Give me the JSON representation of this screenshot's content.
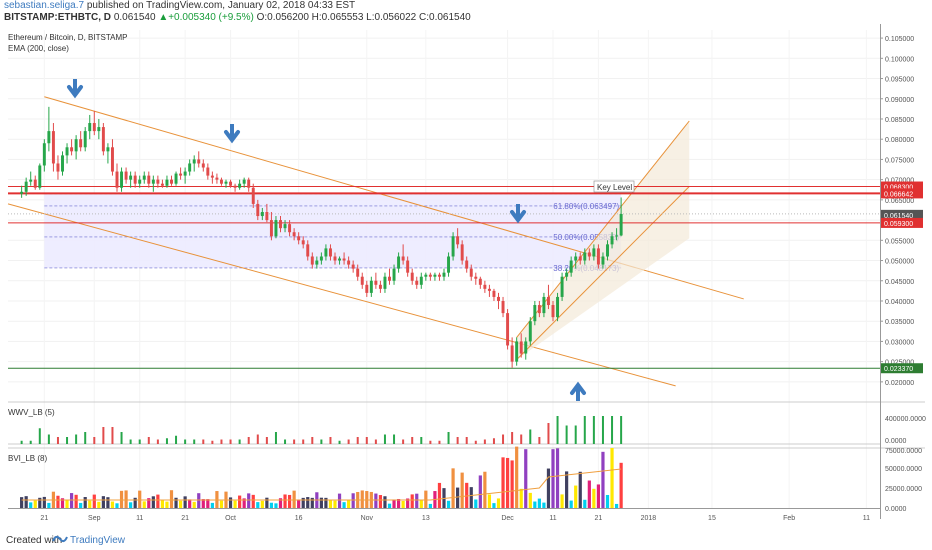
{
  "header": {
    "author": "sebastian.seliga.7",
    "published_text": "published on TradingView.com, January 02, 2018 04:33 EST",
    "symbol": "BITSTAMP:ETHBTC, D",
    "close": "0.061540",
    "change": "+0.005340 (+9.5%)",
    "open": "O:0.056200",
    "high": "H:0.065553",
    "low": "L:0.056022",
    "close_label": "C:0.061540"
  },
  "legend": {
    "title": "Ethereum / Bitcoin, D, BITSTAMP",
    "ema": "EMA (200, close)"
  },
  "annotations": {
    "key_level": "Key Level",
    "fib": [
      "61.80%(0.063497)",
      "50.00%(0.055835)",
      "38.20%(0.048173)"
    ],
    "level_tags": [
      "0.068300",
      "0.066642",
      "0.061540",
      "0.059300",
      "0.023370"
    ]
  },
  "panes": {
    "wvw": "WWV_LB (5)",
    "bvi": "BVI_LB (8)"
  },
  "footer": {
    "created_with": "Created with",
    "brand": "TradingView"
  },
  "colors": {
    "up": "#26a64a",
    "down": "#e14b4b",
    "channel": "#e8923a",
    "red_line": "#e03030",
    "green_line": "#2e7d32",
    "fib": "#6a6ad0",
    "arrow": "#3e7bbf",
    "fib_band": "#ecebff",
    "up_channel_fill": "#f3e9d8"
  },
  "chart_data": {
    "type": "candlestick",
    "title": "Ethereum / Bitcoin, D, BITSTAMP",
    "y_price_ticks": [
      "0.105000",
      "0.100000",
      "0.095000",
      "0.090000",
      "0.085000",
      "0.080000",
      "0.075000",
      "0.070000",
      "0.065000",
      "0.060000",
      "0.055000",
      "0.050000",
      "0.045000",
      "0.040000",
      "0.035000",
      "0.030000",
      "0.025000",
      "0.020000"
    ],
    "y_price_range": [
      0.017,
      0.107
    ],
    "x_ticks": [
      "21",
      "Sep",
      "11",
      "21",
      "Oct",
      "16",
      "Nov",
      "13",
      "Dec",
      "11",
      "21",
      "2018",
      "15",
      "Feb",
      "11"
    ],
    "x_tick_days": [
      0,
      11,
      21,
      31,
      41,
      56,
      71,
      84,
      102,
      112,
      122,
      133,
      147,
      164,
      181
    ],
    "start_date": "2017-08-21",
    "x_range_days": [
      -8,
      184
    ],
    "candles": [
      [
        -5,
        0.0665,
        0.0685,
        0.0655,
        0.067
      ],
      [
        -4,
        0.067,
        0.0705,
        0.066,
        0.0695
      ],
      [
        -3,
        0.0695,
        0.072,
        0.0685,
        0.07
      ],
      [
        -2,
        0.07,
        0.071,
        0.0675,
        0.068
      ],
      [
        -1,
        0.068,
        0.074,
        0.0675,
        0.0735
      ],
      [
        0,
        0.0735,
        0.08,
        0.072,
        0.079
      ],
      [
        1,
        0.079,
        0.088,
        0.077,
        0.082
      ],
      [
        2,
        0.082,
        0.084,
        0.072,
        0.074
      ],
      [
        3,
        0.074,
        0.076,
        0.07,
        0.072
      ],
      [
        4,
        0.072,
        0.077,
        0.071,
        0.076
      ],
      [
        5,
        0.076,
        0.079,
        0.074,
        0.078
      ],
      [
        6,
        0.078,
        0.08,
        0.076,
        0.077
      ],
      [
        7,
        0.077,
        0.081,
        0.075,
        0.08
      ],
      [
        8,
        0.08,
        0.082,
        0.077,
        0.078
      ],
      [
        9,
        0.078,
        0.083,
        0.077,
        0.082
      ],
      [
        10,
        0.082,
        0.086,
        0.08,
        0.084
      ],
      [
        11,
        0.084,
        0.087,
        0.081,
        0.082
      ],
      [
        12,
        0.082,
        0.085,
        0.08,
        0.083
      ],
      [
        13,
        0.083,
        0.084,
        0.076,
        0.077
      ],
      [
        14,
        0.077,
        0.079,
        0.074,
        0.078
      ],
      [
        15,
        0.078,
        0.08,
        0.071,
        0.072
      ],
      [
        16,
        0.072,
        0.074,
        0.067,
        0.068
      ],
      [
        17,
        0.068,
        0.073,
        0.067,
        0.072
      ],
      [
        18,
        0.072,
        0.073,
        0.069,
        0.07
      ],
      [
        19,
        0.07,
        0.072,
        0.068,
        0.071
      ],
      [
        20,
        0.071,
        0.072,
        0.068,
        0.069
      ],
      [
        21,
        0.069,
        0.071,
        0.068,
        0.07
      ],
      [
        22,
        0.07,
        0.072,
        0.069,
        0.071
      ],
      [
        23,
        0.071,
        0.072,
        0.068,
        0.069
      ],
      [
        24,
        0.069,
        0.071,
        0.067,
        0.07
      ],
      [
        25,
        0.07,
        0.071,
        0.068,
        0.069
      ],
      [
        26,
        0.069,
        0.07,
        0.068,
        0.0685
      ],
      [
        27,
        0.0685,
        0.071,
        0.068,
        0.07
      ],
      [
        28,
        0.07,
        0.071,
        0.0685,
        0.069
      ],
      [
        29,
        0.069,
        0.072,
        0.0685,
        0.0715
      ],
      [
        30,
        0.0715,
        0.073,
        0.07,
        0.071
      ],
      [
        31,
        0.071,
        0.073,
        0.069,
        0.072
      ],
      [
        32,
        0.072,
        0.075,
        0.071,
        0.074
      ],
      [
        33,
        0.074,
        0.076,
        0.072,
        0.075
      ],
      [
        34,
        0.075,
        0.077,
        0.073,
        0.074
      ],
      [
        35,
        0.074,
        0.075,
        0.072,
        0.073
      ],
      [
        36,
        0.073,
        0.074,
        0.07,
        0.071
      ],
      [
        37,
        0.071,
        0.072,
        0.069,
        0.0705
      ],
      [
        38,
        0.0705,
        0.0715,
        0.069,
        0.07
      ],
      [
        39,
        0.07,
        0.0705,
        0.0685,
        0.069
      ],
      [
        40,
        0.069,
        0.07,
        0.068,
        0.0695
      ],
      [
        41,
        0.0695,
        0.07,
        0.068,
        0.0685
      ],
      [
        42,
        0.0685,
        0.069,
        0.067,
        0.068
      ],
      [
        43,
        0.068,
        0.07,
        0.0675,
        0.069
      ],
      [
        44,
        0.069,
        0.0705,
        0.068,
        0.07
      ],
      [
        45,
        0.07,
        0.0705,
        0.067,
        0.068
      ],
      [
        46,
        0.068,
        0.069,
        0.063,
        0.064
      ],
      [
        47,
        0.064,
        0.065,
        0.06,
        0.061
      ],
      [
        48,
        0.061,
        0.063,
        0.06,
        0.062
      ],
      [
        49,
        0.062,
        0.064,
        0.0595,
        0.06
      ],
      [
        50,
        0.06,
        0.062,
        0.055,
        0.056
      ],
      [
        51,
        0.056,
        0.061,
        0.0555,
        0.06
      ],
      [
        52,
        0.06,
        0.061,
        0.057,
        0.058
      ],
      [
        53,
        0.058,
        0.06,
        0.057,
        0.059
      ],
      [
        54,
        0.059,
        0.06,
        0.056,
        0.057
      ],
      [
        55,
        0.057,
        0.058,
        0.055,
        0.056
      ],
      [
        56,
        0.056,
        0.057,
        0.054,
        0.055
      ],
      [
        57,
        0.055,
        0.056,
        0.053,
        0.054
      ],
      [
        58,
        0.054,
        0.055,
        0.05,
        0.051
      ],
      [
        59,
        0.051,
        0.052,
        0.048,
        0.049
      ],
      [
        60,
        0.049,
        0.051,
        0.048,
        0.05
      ],
      [
        61,
        0.05,
        0.052,
        0.049,
        0.051
      ],
      [
        62,
        0.051,
        0.054,
        0.05,
        0.053
      ],
      [
        63,
        0.053,
        0.054,
        0.05,
        0.051
      ],
      [
        64,
        0.051,
        0.052,
        0.049,
        0.05
      ],
      [
        65,
        0.05,
        0.051,
        0.049,
        0.0505
      ],
      [
        66,
        0.0505,
        0.052,
        0.049,
        0.05
      ],
      [
        67,
        0.05,
        0.051,
        0.048,
        0.049
      ],
      [
        68,
        0.049,
        0.05,
        0.047,
        0.048
      ],
      [
        69,
        0.048,
        0.049,
        0.045,
        0.046
      ],
      [
        70,
        0.046,
        0.047,
        0.043,
        0.044
      ],
      [
        71,
        0.044,
        0.045,
        0.041,
        0.042
      ],
      [
        72,
        0.042,
        0.046,
        0.041,
        0.045
      ],
      [
        73,
        0.045,
        0.047,
        0.043,
        0.044
      ],
      [
        74,
        0.044,
        0.045,
        0.042,
        0.043
      ],
      [
        75,
        0.043,
        0.047,
        0.042,
        0.046
      ],
      [
        76,
        0.046,
        0.048,
        0.044,
        0.045
      ],
      [
        77,
        0.045,
        0.049,
        0.044,
        0.048
      ],
      [
        78,
        0.048,
        0.052,
        0.047,
        0.051
      ],
      [
        79,
        0.051,
        0.054,
        0.049,
        0.05
      ],
      [
        80,
        0.05,
        0.051,
        0.046,
        0.047
      ],
      [
        81,
        0.047,
        0.048,
        0.044,
        0.045
      ],
      [
        82,
        0.045,
        0.046,
        0.043,
        0.044
      ],
      [
        83,
        0.044,
        0.047,
        0.043,
        0.046
      ],
      [
        84,
        0.046,
        0.047,
        0.045,
        0.0465
      ],
      [
        85,
        0.0465,
        0.047,
        0.045,
        0.046
      ],
      [
        86,
        0.046,
        0.047,
        0.045,
        0.0465
      ],
      [
        87,
        0.0465,
        0.047,
        0.045,
        0.046
      ],
      [
        88,
        0.046,
        0.048,
        0.045,
        0.047
      ],
      [
        89,
        0.047,
        0.052,
        0.046,
        0.051
      ],
      [
        90,
        0.051,
        0.057,
        0.05,
        0.056
      ],
      [
        91,
        0.056,
        0.058,
        0.053,
        0.054
      ],
      [
        92,
        0.054,
        0.055,
        0.049,
        0.05
      ],
      [
        93,
        0.05,
        0.051,
        0.047,
        0.048
      ],
      [
        94,
        0.048,
        0.049,
        0.045,
        0.046
      ],
      [
        95,
        0.046,
        0.047,
        0.044,
        0.0455
      ],
      [
        96,
        0.0455,
        0.046,
        0.043,
        0.044
      ],
      [
        97,
        0.044,
        0.045,
        0.042,
        0.043
      ],
      [
        98,
        0.043,
        0.044,
        0.041,
        0.0425
      ],
      [
        99,
        0.0425,
        0.043,
        0.04,
        0.041
      ],
      [
        100,
        0.041,
        0.042,
        0.038,
        0.04
      ],
      [
        101,
        0.04,
        0.041,
        0.036,
        0.037
      ],
      [
        102,
        0.037,
        0.038,
        0.028,
        0.029
      ],
      [
        103,
        0.029,
        0.031,
        0.0235,
        0.025
      ],
      [
        104,
        0.025,
        0.031,
        0.024,
        0.03
      ],
      [
        105,
        0.03,
        0.032,
        0.026,
        0.027
      ],
      [
        106,
        0.027,
        0.031,
        0.0255,
        0.03
      ],
      [
        107,
        0.03,
        0.036,
        0.029,
        0.035
      ],
      [
        108,
        0.035,
        0.04,
        0.034,
        0.039
      ],
      [
        109,
        0.039,
        0.04,
        0.036,
        0.037
      ],
      [
        110,
        0.037,
        0.042,
        0.036,
        0.041
      ],
      [
        111,
        0.041,
        0.044,
        0.038,
        0.039
      ],
      [
        112,
        0.039,
        0.04,
        0.035,
        0.036
      ],
      [
        113,
        0.036,
        0.042,
        0.035,
        0.041
      ],
      [
        114,
        0.041,
        0.047,
        0.04,
        0.046
      ],
      [
        115,
        0.046,
        0.048,
        0.045,
        0.047
      ],
      [
        116,
        0.047,
        0.051,
        0.046,
        0.05
      ],
      [
        117,
        0.05,
        0.052,
        0.048,
        0.051
      ],
      [
        118,
        0.051,
        0.052,
        0.049,
        0.05
      ],
      [
        119,
        0.05,
        0.053,
        0.049,
        0.052
      ],
      [
        120,
        0.052,
        0.053,
        0.05,
        0.051
      ],
      [
        121,
        0.051,
        0.054,
        0.05,
        0.053
      ],
      [
        122,
        0.053,
        0.054,
        0.048,
        0.049
      ],
      [
        123,
        0.049,
        0.052,
        0.048,
        0.051
      ],
      [
        124,
        0.051,
        0.055,
        0.05,
        0.054
      ],
      [
        125,
        0.054,
        0.057,
        0.053,
        0.056
      ],
      [
        126,
        0.056,
        0.058,
        0.055,
        0.0562
      ],
      [
        127,
        0.0562,
        0.0656,
        0.056,
        0.0615
      ]
    ]
  }
}
